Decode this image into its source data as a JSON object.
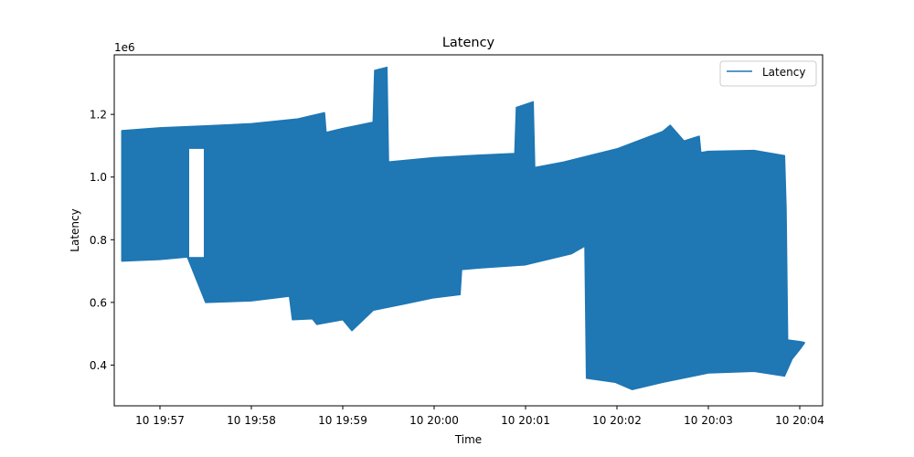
{
  "chart_data": {
    "type": "line",
    "title": "Latency",
    "xlabel": "Time",
    "ylabel": "Latency",
    "y_offset_text": "1e6",
    "x_tick_labels": [
      "10 19:57",
      "10 19:58",
      "10 19:59",
      "10 20:00",
      "10 20:01",
      "10 20:02",
      "10 20:03",
      "10 20:04"
    ],
    "y_ticks": [
      0.4,
      0.6,
      0.8,
      1.0,
      1.2
    ],
    "y_tick_labels": [
      "0.4",
      "0.6",
      "0.8",
      "1.0",
      "1.2"
    ],
    "xlim": [
      "19:56:30",
      "20:04:15"
    ],
    "ylim": [
      0.27,
      1.39
    ],
    "y_unit_multiplier": 1000000,
    "grid": false,
    "legend": {
      "position": "top-right",
      "entries": [
        "Latency"
      ]
    },
    "series": [
      {
        "name": "Latency",
        "color": "#1f77b4",
        "style": "dense oscillating line rendered as filled band between lower and upper envelopes",
        "upper_envelope": [
          {
            "x": "19:56:35",
            "y": 1.148
          },
          {
            "x": "19:57:00",
            "y": 1.157
          },
          {
            "x": "19:57:30",
            "y": 1.163
          },
          {
            "x": "19:58:00",
            "y": 1.17
          },
          {
            "x": "19:58:30",
            "y": 1.185
          },
          {
            "x": "19:58:48",
            "y": 1.205
          },
          {
            "x": "19:58:49",
            "y": 1.142
          },
          {
            "x": "19:59:00",
            "y": 1.155
          },
          {
            "x": "19:59:20",
            "y": 1.175
          },
          {
            "x": "19:59:21",
            "y": 1.34
          },
          {
            "x": "19:59:29",
            "y": 1.35
          },
          {
            "x": "19:59:30",
            "y": 1.048
          },
          {
            "x": "20:00:00",
            "y": 1.062
          },
          {
            "x": "20:00:30",
            "y": 1.07
          },
          {
            "x": "20:00:53",
            "y": 1.075
          },
          {
            "x": "20:00:54",
            "y": 1.222
          },
          {
            "x": "20:01:05",
            "y": 1.24
          },
          {
            "x": "20:01:06",
            "y": 1.03
          },
          {
            "x": "20:01:25",
            "y": 1.048
          },
          {
            "x": "20:02:00",
            "y": 1.09
          },
          {
            "x": "20:02:30",
            "y": 1.145
          },
          {
            "x": "20:02:35",
            "y": 1.165
          },
          {
            "x": "20:02:44",
            "y": 1.115
          },
          {
            "x": "20:02:54",
            "y": 1.13
          },
          {
            "x": "20:02:55",
            "y": 1.078
          },
          {
            "x": "20:03:00",
            "y": 1.082
          },
          {
            "x": "20:03:30",
            "y": 1.085
          },
          {
            "x": "20:03:50",
            "y": 1.068
          },
          {
            "x": "20:03:51",
            "y": 0.9
          },
          {
            "x": "20:03:52",
            "y": 0.48
          },
          {
            "x": "20:04:00",
            "y": 0.475
          },
          {
            "x": "20:04:03",
            "y": 0.472
          }
        ],
        "lower_envelope": [
          {
            "x": "19:56:35",
            "y": 0.732
          },
          {
            "x": "19:57:00",
            "y": 0.737
          },
          {
            "x": "19:57:18",
            "y": 0.745
          },
          {
            "x": "19:57:30",
            "y": 0.6
          },
          {
            "x": "19:58:00",
            "y": 0.605
          },
          {
            "x": "19:58:25",
            "y": 0.62
          },
          {
            "x": "19:58:27",
            "y": 0.545
          },
          {
            "x": "19:58:40",
            "y": 0.548
          },
          {
            "x": "19:58:43",
            "y": 0.53
          },
          {
            "x": "19:59:00",
            "y": 0.545
          },
          {
            "x": "19:59:06",
            "y": 0.51
          },
          {
            "x": "19:59:20",
            "y": 0.575
          },
          {
            "x": "19:59:40",
            "y": 0.595
          },
          {
            "x": "20:00:00",
            "y": 0.615
          },
          {
            "x": "20:00:17",
            "y": 0.625
          },
          {
            "x": "20:00:18",
            "y": 0.705
          },
          {
            "x": "20:00:30",
            "y": 0.71
          },
          {
            "x": "20:01:00",
            "y": 0.72
          },
          {
            "x": "20:01:30",
            "y": 0.755
          },
          {
            "x": "20:01:39",
            "y": 0.78
          },
          {
            "x": "20:01:40",
            "y": 0.358
          },
          {
            "x": "20:01:59",
            "y": 0.345
          },
          {
            "x": "20:02:10",
            "y": 0.322
          },
          {
            "x": "20:02:30",
            "y": 0.345
          },
          {
            "x": "20:03:00",
            "y": 0.375
          },
          {
            "x": "20:03:30",
            "y": 0.38
          },
          {
            "x": "20:03:50",
            "y": 0.365
          },
          {
            "x": "20:03:55",
            "y": 0.42
          },
          {
            "x": "20:04:00",
            "y": 0.45
          },
          {
            "x": "20:04:03",
            "y": 0.47
          }
        ],
        "gaps": [
          {
            "from": "19:57:18",
            "to": "19:57:30",
            "y_low": 0.745,
            "y_high": 1.09
          }
        ]
      }
    ]
  }
}
